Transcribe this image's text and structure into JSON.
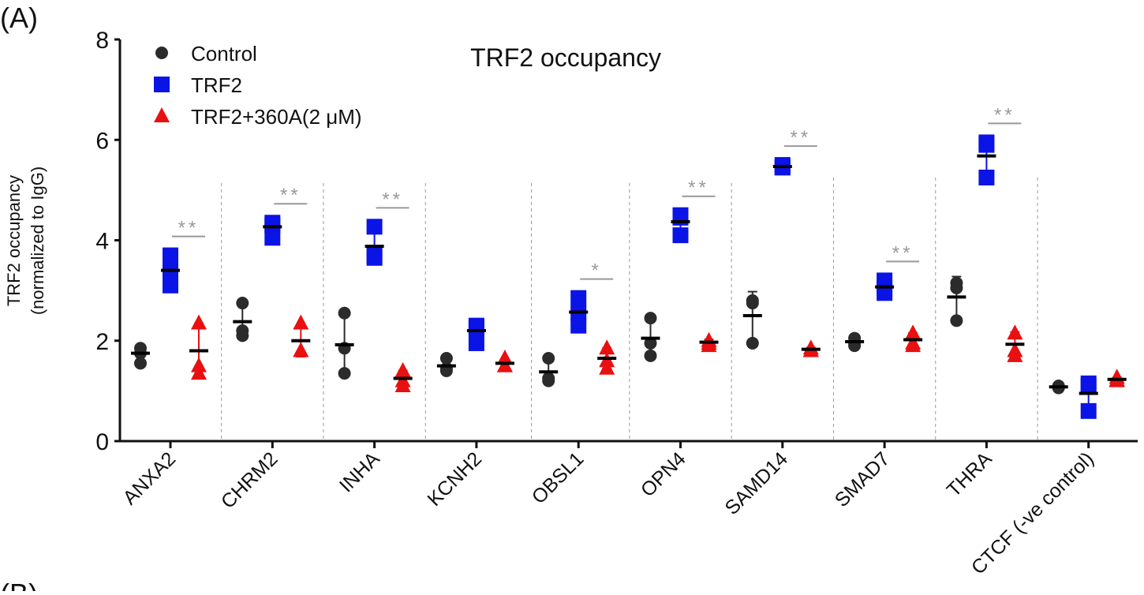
{
  "panel_label": "(A)",
  "next_panel_label": "(B)",
  "chart_data": {
    "type": "scatter",
    "title": "TRF2 occupancy",
    "ylabel_line1": "TRF2 occupancy",
    "ylabel_line2": "(normalized to IgG)",
    "xlabel": "",
    "ylim": [
      0,
      8
    ],
    "yticks": [
      "0",
      "2",
      "4",
      "6",
      "8"
    ],
    "grid": false,
    "legend_position": "top-left",
    "categories": [
      "ANXA2",
      "CHRM2",
      "INHA",
      "KCNH2",
      "OBSL1",
      "OPN4",
      "SAMD14",
      "SMAD7",
      "THRA",
      "CTCF (-ve control)"
    ],
    "series": [
      {
        "name": "Control",
        "marker": "circle",
        "color": "#2b2b2b",
        "means": [
          1.75,
          2.38,
          1.92,
          1.5,
          1.38,
          2.05,
          2.5,
          1.98,
          2.87,
          1.08
        ],
        "points": [
          [
            1.85,
            1.75,
            1.55
          ],
          [
            2.75,
            2.2,
            2.1
          ],
          [
            2.55,
            1.85,
            1.35
          ],
          [
            1.65,
            1.45,
            1.4
          ],
          [
            1.65,
            1.25,
            1.2
          ],
          [
            2.45,
            1.95,
            1.7
          ],
          [
            2.8,
            2.75,
            1.95
          ],
          [
            2.05,
            1.95,
            1.9
          ],
          [
            3.15,
            3.05,
            2.4
          ],
          [
            1.1,
            1.07,
            1.06
          ]
        ]
      },
      {
        "name": "TRF2",
        "marker": "square",
        "color": "#0a14e6",
        "means": [
          3.4,
          4.27,
          3.88,
          2.2,
          2.57,
          4.37,
          5.47,
          3.07,
          5.68,
          0.95
        ],
        "points": [
          [
            3.7,
            3.4,
            3.1
          ],
          [
            4.35,
            4.3,
            4.05
          ],
          [
            4.27,
            3.7,
            3.65
          ],
          [
            2.3,
            2.25,
            1.95
          ],
          [
            2.85,
            2.55,
            2.3
          ],
          [
            4.5,
            4.45,
            4.1
          ],
          [
            5.5,
            5.45,
            5.45
          ],
          [
            3.2,
            3.05,
            2.95
          ],
          [
            5.95,
            5.9,
            5.25
          ],
          [
            1.15,
            1.1,
            0.6
          ]
        ]
      },
      {
        "name": "TRF2+360A(2 μM)",
        "marker": "triangle",
        "color": "#e81010",
        "means": [
          1.8,
          2.0,
          1.25,
          1.55,
          1.65,
          1.97,
          1.83,
          2.02,
          1.93,
          1.23
        ],
        "points": [
          [
            2.35,
            1.5,
            1.35
          ],
          [
            2.35,
            1.8,
            1.8
          ],
          [
            1.4,
            1.2,
            1.1
          ],
          [
            1.65,
            1.5,
            1.5
          ],
          [
            1.85,
            1.6,
            1.45
          ],
          [
            2.0,
            1.95,
            1.9
          ],
          [
            1.85,
            1.8,
            1.8
          ],
          [
            2.15,
            1.95,
            1.9
          ],
          [
            2.15,
            1.8,
            1.7
          ],
          [
            1.27,
            1.22,
            1.2
          ]
        ]
      }
    ],
    "significance": [
      "**",
      "**",
      "**",
      "",
      "*",
      "**",
      "**",
      "**",
      "**",
      ""
    ]
  }
}
